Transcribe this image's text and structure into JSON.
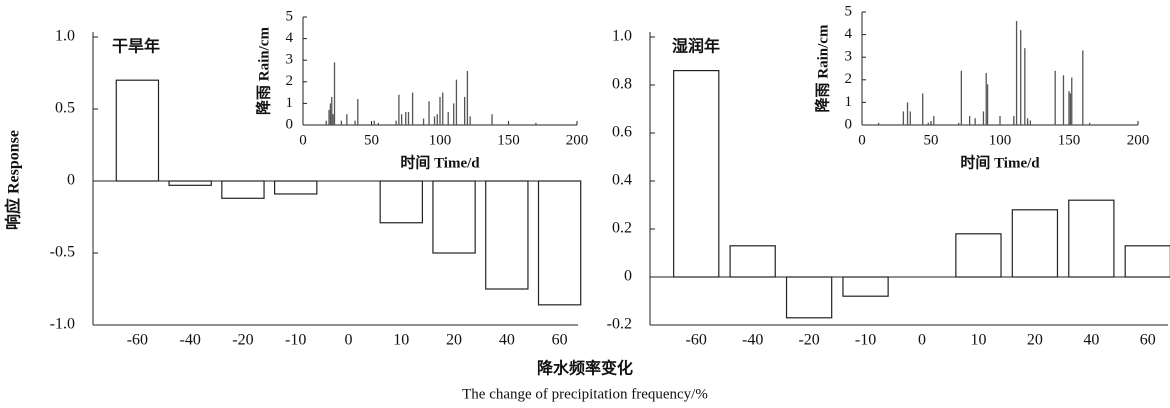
{
  "chart_data": [
    {
      "type": "bar",
      "annotation": "干旱年",
      "ylabel": "响应 Response",
      "xlabel": "降水频率变化",
      "xlabel_en": "The change of precipitation frequency/%",
      "categories": [
        "-60",
        "-40",
        "-20",
        "-10",
        "0",
        "10",
        "20",
        "40",
        "60"
      ],
      "values": [
        0.7,
        -0.03,
        -0.12,
        -0.09,
        0,
        -0.29,
        -0.5,
        -0.75,
        -0.86
      ],
      "color": "#ffffff",
      "ylim": [
        -1,
        1
      ],
      "yticks": [
        {
          "value": -1,
          "label": "-1.0"
        },
        -0.5,
        0,
        0.5,
        {
          "value": 1,
          "label": "1.0"
        }
      ]
    },
    {
      "type": "spike",
      "ylabel": "降雨 Rain/cm",
      "xlabel": "时间 Time/d",
      "color": "#555555",
      "x": [
        17,
        19,
        20,
        21,
        22,
        23,
        28,
        32,
        38,
        40,
        52,
        55,
        68,
        70,
        72,
        75,
        77,
        80,
        88,
        92,
        96,
        98,
        100,
        102,
        106,
        110,
        112,
        118,
        120,
        122,
        138,
        150,
        170
      ],
      "values": [
        0.2,
        0.7,
        1.0,
        1.3,
        0.5,
        2.9,
        0.2,
        0.5,
        0.2,
        1.2,
        0.2,
        0.1,
        0.2,
        1.4,
        0.5,
        0.6,
        0.6,
        1.5,
        0.3,
        1.1,
        0.4,
        0.5,
        1.3,
        1.5,
        0.6,
        1.0,
        2.1,
        1.3,
        2.5,
        0.4,
        0.5,
        0.1,
        0.1
      ],
      "xlim": [
        0,
        200
      ],
      "xticks": [
        0,
        50,
        100,
        150,
        200
      ],
      "ylim": [
        0,
        5
      ],
      "yticks": [
        0,
        1,
        2,
        3,
        4,
        5
      ]
    },
    {
      "type": "bar",
      "annotation": "湿润年",
      "categories": [
        "-60",
        "-40",
        "-20",
        "-10",
        "0",
        "10",
        "20",
        "40",
        "60"
      ],
      "values": [
        0.86,
        0.13,
        -0.17,
        -0.08,
        0,
        0.18,
        0.28,
        0.32,
        0.13
      ],
      "color": "#ffffff",
      "ylim": [
        -0.2,
        1
      ],
      "yticks": [
        -0.2,
        0,
        0.2,
        0.4,
        0.6,
        0.8,
        {
          "value": 1,
          "label": "1.0"
        }
      ]
    },
    {
      "type": "spike",
      "ylabel": "降雨 Rain/cm",
      "xlabel": "时间 Time/d",
      "color": "#555555",
      "x": [
        12,
        30,
        33,
        35,
        44,
        48,
        52,
        70,
        72,
        78,
        82,
        88,
        90,
        91,
        100,
        110,
        112,
        115,
        118,
        120,
        122,
        140,
        146,
        150,
        151,
        152,
        160,
        165
      ],
      "values": [
        0.1,
        0.6,
        1.0,
        0.6,
        1.4,
        0.1,
        0.4,
        0.1,
        2.4,
        0.4,
        0.3,
        0.6,
        2.3,
        1.8,
        0.4,
        0.4,
        4.6,
        4.2,
        3.4,
        0.3,
        0.2,
        2.4,
        2.2,
        1.5,
        1.4,
        2.1,
        3.3,
        0.1
      ],
      "xlim": [
        0,
        200
      ],
      "xticks": [
        0,
        50,
        100,
        150,
        200
      ],
      "ylim": [
        0,
        5
      ],
      "yticks": [
        0,
        1,
        2,
        3,
        4,
        5
      ]
    }
  ]
}
